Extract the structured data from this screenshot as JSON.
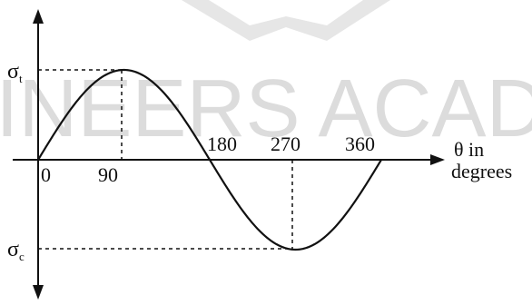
{
  "diagram": {
    "watermark": "GINEERS ACADE",
    "y_axis": {
      "top_label": "σ",
      "top_sub": "t",
      "bottom_label": "σ",
      "bottom_sub": "c"
    },
    "x_axis": {
      "label_line1": "θ in",
      "label_line2": "degrees",
      "ticks": [
        "0",
        "90",
        "180",
        "270",
        "360"
      ]
    },
    "curve": {
      "type": "sine",
      "start_deg": 0,
      "end_deg": 360,
      "peak_at_deg": 90,
      "trough_at_deg": 270
    },
    "colors": {
      "ink": "#111111",
      "watermark": "#dcdcdc"
    }
  }
}
